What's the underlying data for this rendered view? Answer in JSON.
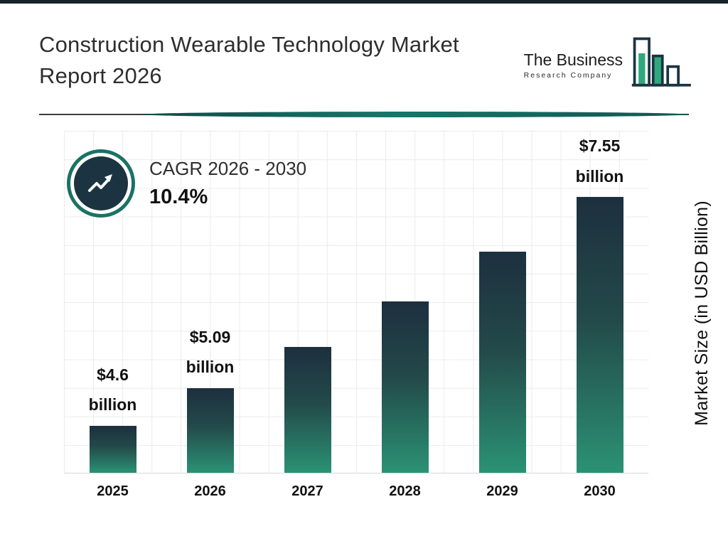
{
  "header": {
    "title_line1": "Construction Wearable Technology Market",
    "title_line2": "Report 2026"
  },
  "logo": {
    "name": "The Business",
    "subtitle": "Research Company"
  },
  "cagr": {
    "label": "CAGR 2026 - 2030",
    "value": "10.4%"
  },
  "chart_data": {
    "type": "bar",
    "title": "Construction Wearable Technology Market Report 2026",
    "categories": [
      "2025",
      "2026",
      "2027",
      "2028",
      "2029",
      "2030"
    ],
    "values": [
      4.6,
      5.09,
      5.62,
      6.2,
      6.84,
      7.55
    ],
    "value_labels": [
      {
        "amount": "$4.6",
        "unit": "billion"
      },
      {
        "amount": "$5.09",
        "unit": "billion"
      },
      null,
      null,
      null,
      {
        "amount": "$7.55",
        "unit": "billion"
      }
    ],
    "xlabel": "",
    "ylabel": "Market Size (in USD Billion)",
    "ylim": [
      4.0,
      8.4
    ],
    "grid": true,
    "legend": "none",
    "bar_gradient_top": "#1d2f3e",
    "bar_gradient_bottom": "#2b9274"
  },
  "colors": {
    "accent_teal": "#1a7265",
    "navy": "#1c3441",
    "logo_green": "#2fa87e",
    "top_bar": "#16222c"
  }
}
